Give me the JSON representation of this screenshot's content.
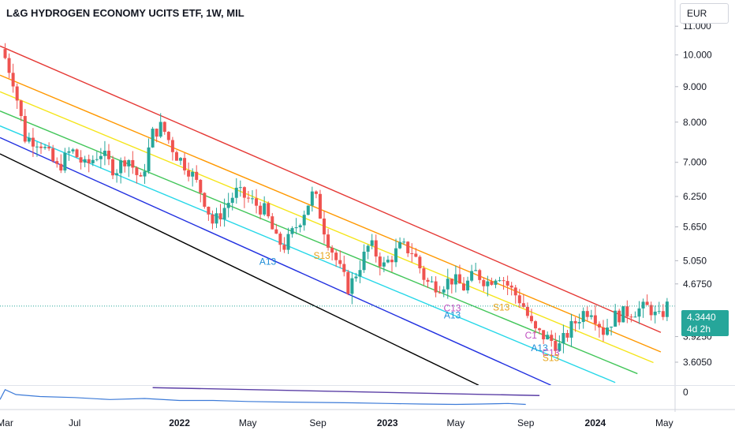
{
  "header": {
    "title": "L&G HYDROGEN ECONOMY UCITS ETF, 1W, MIL",
    "currency_label": "EUR"
  },
  "price_tag": {
    "price": "4.3440",
    "countdown": "4d 2h"
  },
  "colors": {
    "up": "#26a69a",
    "down": "#ef5350",
    "bands": [
      "#e53935",
      "#ff9800",
      "#f5e51b",
      "#43c65a",
      "#26d7e8",
      "#2130e0",
      "#000000"
    ],
    "oscillator": "#3d7bd8",
    "oscillator_trend": "#5b3fa6"
  },
  "chart_data": {
    "type": "candlestick",
    "title": "L&G HYDROGEN ECONOMY UCITS ETF, 1W, MIL",
    "currency": "EUR",
    "timeframe": "1W",
    "y_scale": "log",
    "ylim": [
      3.35,
      12.0
    ],
    "xlim": [
      "2021-02-20",
      "2024-05-20"
    ],
    "y_ticks": [
      "11.000",
      "10.000",
      "9.000",
      "8.000",
      "7.000",
      "6.250",
      "5.650",
      "5.050",
      "4.6750",
      "3.9250",
      "3.6050"
    ],
    "x_ticks": [
      {
        "label": "Mar",
        "date": "2021-03-01"
      },
      {
        "label": "Jul",
        "date": "2021-07-01"
      },
      {
        "label": "2022",
        "date": "2022-01-01"
      },
      {
        "label": "May",
        "date": "2022-05-01"
      },
      {
        "label": "Sep",
        "date": "2022-09-01"
      },
      {
        "label": "2023",
        "date": "2023-01-01"
      },
      {
        "label": "May",
        "date": "2023-05-01"
      },
      {
        "label": "Sep",
        "date": "2023-09-01"
      },
      {
        "label": "2024",
        "date": "2024-01-01"
      },
      {
        "label": "May",
        "date": "2024-05-01"
      }
    ],
    "last_price": 4.344,
    "price_keypoints": [
      [
        "2021-03-01",
        9.9
      ],
      [
        "2021-03-15",
        9.2
      ],
      [
        "2021-04-05",
        7.6
      ],
      [
        "2021-05-01",
        7.5
      ],
      [
        "2021-06-01",
        6.85
      ],
      [
        "2021-06-25",
        7.3
      ],
      [
        "2021-07-20",
        6.9
      ],
      [
        "2021-08-15",
        7.25
      ],
      [
        "2021-09-10",
        6.8
      ],
      [
        "2021-10-01",
        7.15
      ],
      [
        "2021-10-25",
        6.55
      ],
      [
        "2021-11-15",
        7.7
      ],
      [
        "2021-12-01",
        7.9
      ],
      [
        "2021-12-25",
        7.2
      ],
      [
        "2022-01-20",
        6.8
      ],
      [
        "2022-02-10",
        6.3
      ],
      [
        "2022-03-01",
        5.7
      ],
      [
        "2022-03-20",
        6.0
      ],
      [
        "2022-04-10",
        6.35
      ],
      [
        "2022-05-01",
        6.2
      ],
      [
        "2022-06-01",
        5.95
      ],
      [
        "2022-06-20",
        5.4
      ],
      [
        "2022-07-05",
        5.3
      ],
      [
        "2022-08-01",
        5.8
      ],
      [
        "2022-08-25",
        6.35
      ],
      [
        "2022-09-15",
        5.5
      ],
      [
        "2022-10-10",
        4.9
      ],
      [
        "2022-10-25",
        4.6
      ],
      [
        "2022-11-15",
        5.0
      ],
      [
        "2022-12-01",
        5.35
      ],
      [
        "2022-12-25",
        4.95
      ],
      [
        "2023-01-25",
        5.3
      ],
      [
        "2023-02-15",
        5.2
      ],
      [
        "2023-03-10",
        4.7
      ],
      [
        "2023-04-01",
        4.65
      ],
      [
        "2023-04-25",
        4.75
      ],
      [
        "2023-05-15",
        4.62
      ],
      [
        "2023-06-05",
        4.85
      ],
      [
        "2023-06-25",
        4.7
      ],
      [
        "2023-07-15",
        4.85
      ],
      [
        "2023-08-05",
        4.6
      ],
      [
        "2023-08-25",
        4.4
      ],
      [
        "2023-09-15",
        4.0
      ],
      [
        "2023-10-10",
        3.9
      ],
      [
        "2023-10-30",
        3.8
      ],
      [
        "2023-11-20",
        4.05
      ],
      [
        "2023-12-10",
        4.25
      ],
      [
        "2023-12-25",
        4.3
      ],
      [
        "2024-01-15",
        4.0
      ],
      [
        "2024-02-05",
        4.2
      ],
      [
        "2024-02-25",
        4.25
      ],
      [
        "2024-03-20",
        4.3
      ],
      [
        "2024-04-05",
        4.33
      ],
      [
        "2024-04-20",
        4.15
      ],
      [
        "2024-05-06",
        4.344
      ]
    ],
    "bands": [
      {
        "color": "#e53935",
        "start": [
          "2021-02-20",
          10.3
        ],
        "end": [
          "2024-04-25",
          3.98
        ]
      },
      {
        "color": "#ff9800",
        "start": [
          "2021-02-20",
          9.35
        ],
        "end": [
          "2024-04-25",
          3.73
        ]
      },
      {
        "color": "#f5e51b",
        "start": [
          "2021-02-20",
          8.85
        ],
        "end": [
          "2024-04-12",
          3.6
        ]
      },
      {
        "color": "#43c65a",
        "start": [
          "2021-02-20",
          8.3
        ],
        "end": [
          "2024-03-15",
          3.47
        ]
      },
      {
        "color": "#26d7e8",
        "start": [
          "2021-02-20",
          7.9
        ],
        "end": [
          "2024-02-05",
          3.37
        ]
      },
      {
        "color": "#2130e0",
        "start": [
          "2021-02-20",
          7.6
        ],
        "end": [
          "2023-10-15",
          3.34
        ]
      },
      {
        "color": "#000000",
        "start": [
          "2021-02-20",
          7.2
        ],
        "end": [
          "2023-06-10",
          3.34
        ]
      }
    ],
    "annotations": [
      {
        "text": "A13",
        "date": "2022-06-05",
        "price": 4.98,
        "color": "#1f8ed8"
      },
      {
        "text": "S13",
        "date": "2022-09-08",
        "price": 5.08,
        "color": "#e6a317"
      },
      {
        "text": "C13",
        "date": "2023-04-25",
        "price": 4.27,
        "color": "#c04fc0"
      },
      {
        "text": "A13",
        "date": "2023-04-25",
        "price": 4.17,
        "color": "#1f8ed8"
      },
      {
        "text": "S13",
        "date": "2023-07-20",
        "price": 4.28,
        "color": "#e6a317"
      },
      {
        "text": "C1",
        "date": "2023-09-10",
        "price": 3.9,
        "color": "#c04fc0"
      },
      {
        "text": "A13",
        "date": "2023-09-25",
        "price": 3.74,
        "color": "#1f8ed8"
      },
      {
        "text": "C13",
        "date": "2023-10-15",
        "price": 3.68,
        "color": "#c04fc0"
      },
      {
        "text": "S13",
        "date": "2023-10-15",
        "price": 3.62,
        "color": "#e6a317"
      }
    ],
    "oscillator": {
      "zero_label": "0",
      "trend_start": [
        "2021-11-15",
        0.95
      ],
      "trend_end": [
        "2023-09-25",
        0.55
      ],
      "values": [
        [
          "2021-02-20",
          0.35
        ],
        [
          "2021-03-01",
          0.85
        ],
        [
          "2021-03-20",
          0.6
        ],
        [
          "2021-05-01",
          0.5
        ],
        [
          "2021-07-01",
          0.45
        ],
        [
          "2021-09-01",
          0.35
        ],
        [
          "2021-11-01",
          0.4
        ],
        [
          "2022-01-01",
          0.3
        ],
        [
          "2022-03-01",
          0.3
        ],
        [
          "2022-05-01",
          0.25
        ],
        [
          "2022-07-01",
          0.22
        ],
        [
          "2022-09-01",
          0.2
        ],
        [
          "2022-11-01",
          0.18
        ],
        [
          "2023-01-01",
          0.15
        ],
        [
          "2023-03-01",
          0.12
        ],
        [
          "2023-05-01",
          0.1
        ],
        [
          "2023-06-15",
          0.12
        ],
        [
          "2023-08-01",
          0.15
        ],
        [
          "2023-09-01",
          0.1
        ]
      ]
    }
  }
}
